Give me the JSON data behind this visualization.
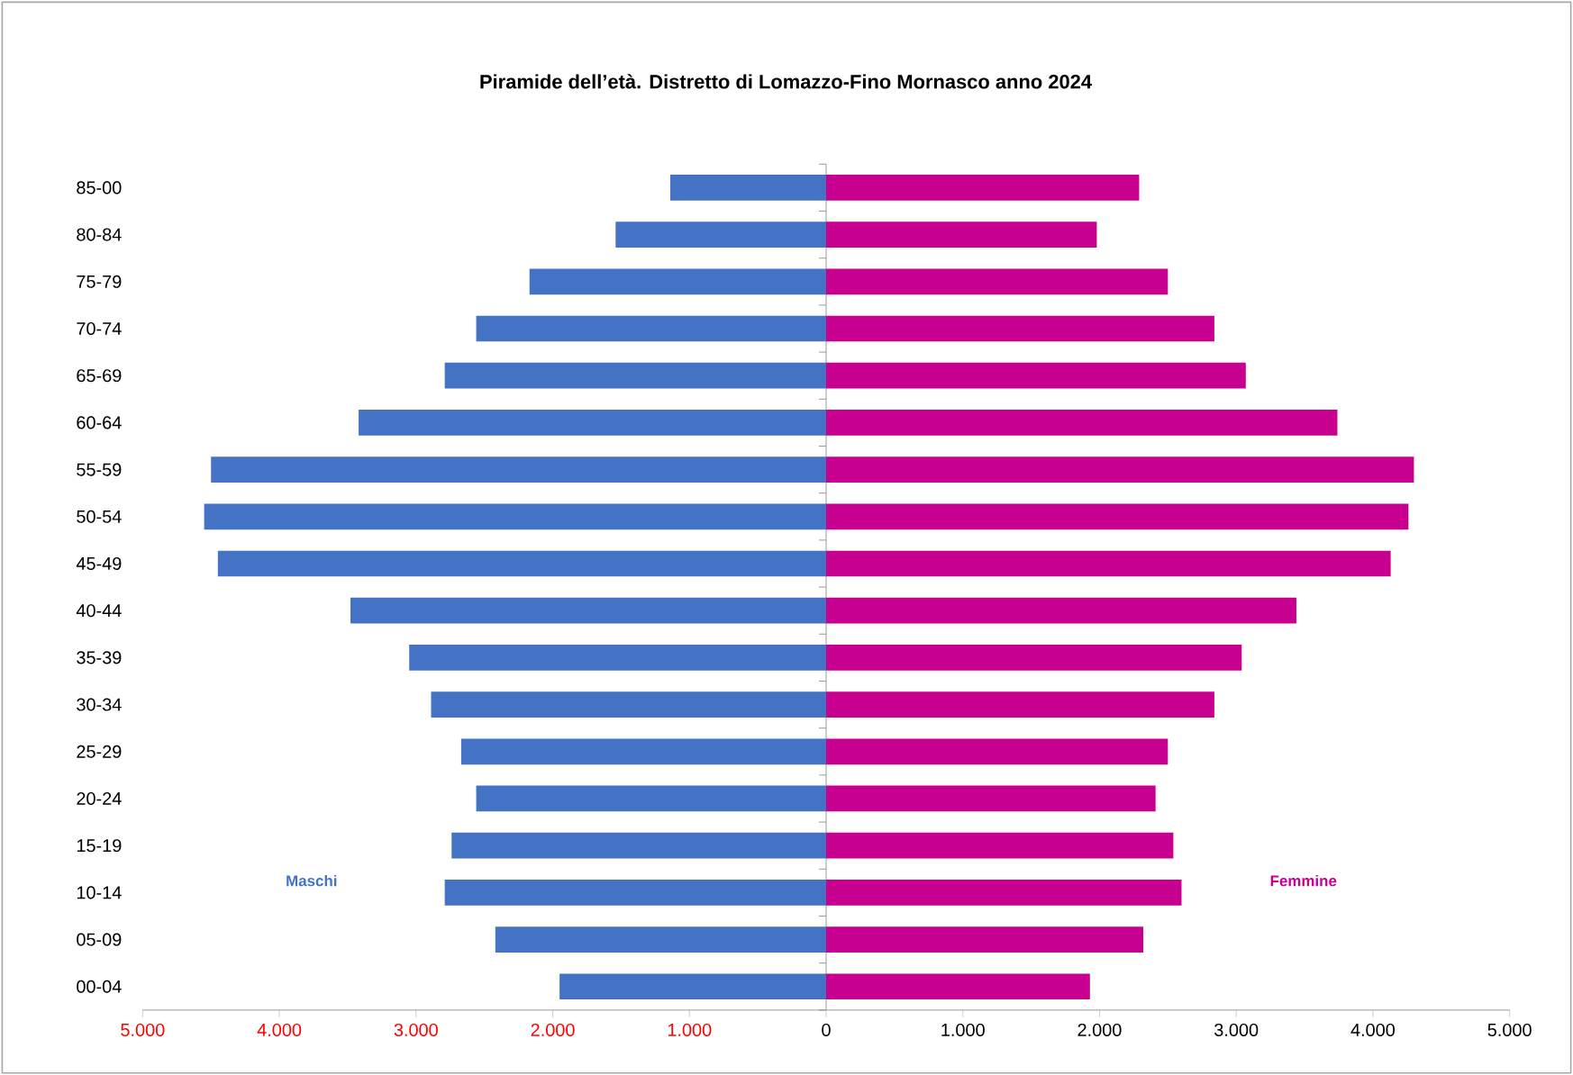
{
  "chart_data": {
    "type": "bar",
    "orientation": "horizontal",
    "title": "Piramide dell’età. Distretto di Lomazzo-Fino Mornasco anno 2024",
    "categories": [
      "85-00",
      "80-84",
      "75-79",
      "70-74",
      "65-69",
      "60-64",
      "55-59",
      "50-54",
      "45-49",
      "40-44",
      "35-39",
      "30-34",
      "25-29",
      "20-24",
      "15-19",
      "10-14",
      "05-09",
      "00-04"
    ],
    "series": [
      {
        "name": "Maschi",
        "color": "#4472c4",
        "values": [
          -1140,
          -1540,
          -2170,
          -2560,
          -2790,
          -3420,
          -4500,
          -4550,
          -4450,
          -3480,
          -3050,
          -2890,
          -2670,
          -2560,
          -2740,
          -2790,
          -2420,
          -1950
        ]
      },
      {
        "name": "Femmine",
        "color": "#c8008f",
        "values": [
          2290,
          1980,
          2500,
          2840,
          3070,
          3740,
          4300,
          4260,
          4130,
          3440,
          3040,
          2840,
          2500,
          2410,
          2540,
          2600,
          2320,
          1930
        ]
      }
    ],
    "xlim": [
      -5000,
      5000
    ],
    "xticks": [
      {
        "value": -5000,
        "label": "5.000"
      },
      {
        "value": -4000,
        "label": "4.000"
      },
      {
        "value": -3000,
        "label": "3.000"
      },
      {
        "value": -2000,
        "label": "2.000"
      },
      {
        "value": -1000,
        "label": "1.000"
      },
      0,
      {
        "value": 1000,
        "label": "1.000"
      },
      {
        "value": 2000,
        "label": "2.000"
      },
      {
        "value": 3000,
        "label": "3.000"
      },
      {
        "value": 4000,
        "label": "4.000"
      },
      {
        "value": 5000,
        "label": "5.000"
      }
    ],
    "stacked": true,
    "legend": false
  }
}
